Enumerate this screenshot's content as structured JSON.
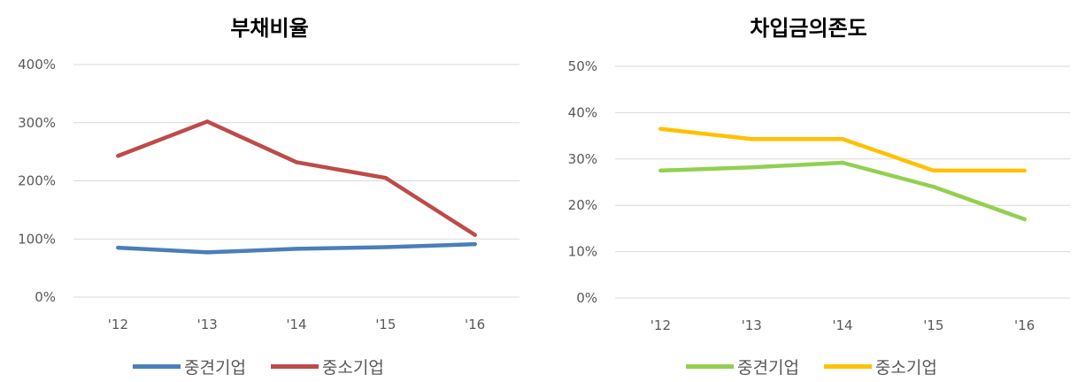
{
  "chart_data": [
    {
      "type": "line",
      "title": "부채비율",
      "categories": [
        "'12",
        "'13",
        "'14",
        "'15",
        "'16"
      ],
      "ylim": [
        0,
        400
      ],
      "yticks": [
        0,
        100,
        200,
        300,
        400
      ],
      "ytick_labels": [
        "0%",
        "100%",
        "200%",
        "300%",
        "400%"
      ],
      "grid": true,
      "legend_position": "bottom",
      "series": [
        {
          "name": "중견기업",
          "color": "#4a7ebb",
          "values": [
            85,
            77,
            83,
            86,
            91
          ]
        },
        {
          "name": "중소기업",
          "color": "#be4b48",
          "values": [
            243,
            302,
            232,
            205,
            107
          ]
        }
      ]
    },
    {
      "type": "line",
      "title": "차입금의존도",
      "categories": [
        "'12",
        "'13",
        "'14",
        "'15",
        "'16"
      ],
      "ylim": [
        0,
        50
      ],
      "yticks": [
        0,
        10,
        20,
        30,
        40,
        50
      ],
      "ytick_labels": [
        "0%",
        "10%",
        "20%",
        "30%",
        "40%",
        "50%"
      ],
      "grid": true,
      "legend_position": "bottom",
      "series": [
        {
          "name": "중견기업",
          "color": "#92d050",
          "values": [
            27.5,
            28.2,
            29.2,
            24,
            17
          ]
        },
        {
          "name": "중소기업",
          "color": "#ffc000",
          "values": [
            36.5,
            34.3,
            34.3,
            27.5,
            27.5
          ]
        }
      ]
    }
  ]
}
